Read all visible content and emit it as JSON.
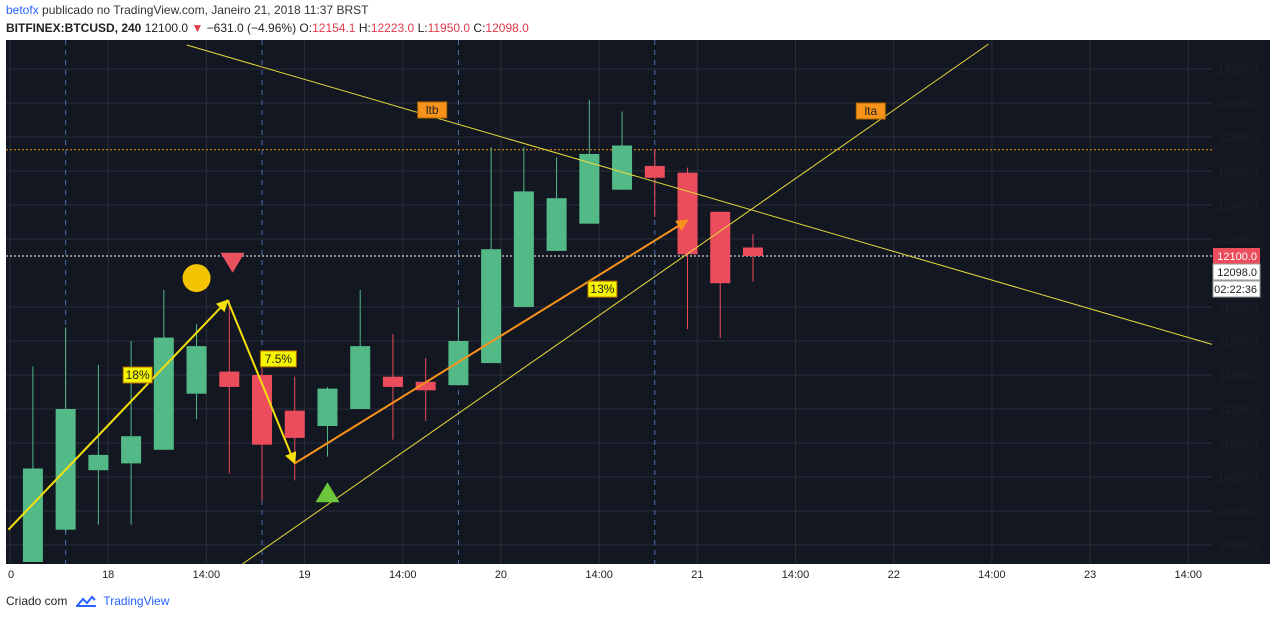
{
  "header": {
    "author": "betofx",
    "published_text": "publicado no TradingView.com, Janeiro 21, 2018 11:37 BRST",
    "symbol": "BITFINEX:BTCUSD, 240",
    "last": "12100.0",
    "change_arrow": "▼",
    "change": "−631.0 (−4.96%)",
    "o_label": "O:",
    "o_value": "12154.1",
    "h_label": "H:",
    "h_value": "12223.0",
    "l_label": "L:",
    "l_value": "11950.0",
    "c_label": "C:",
    "c_value": "12098.0"
  },
  "footer": {
    "created": "Criado com",
    "brand": "TradingView",
    "logo_icon": "tradingview-cloud-icon"
  },
  "chart_data": {
    "type": "candlestick",
    "y_ticks": [
      "13200.0",
      "13000.0",
      "12800.0",
      "12600.0",
      "12400.0",
      "12200.0",
      "11800.0",
      "11600.0",
      "11400.0",
      "11200.0",
      "11000.0",
      "10800.0",
      "10600.0",
      "10400.0"
    ],
    "ylim": [
      10300,
      13400
    ],
    "x_ticks": [
      {
        "x": 0,
        "label": "0"
      },
      {
        "x": 3,
        "label": "18"
      },
      {
        "x": 6,
        "label": "14:00"
      },
      {
        "x": 9,
        "label": "19"
      },
      {
        "x": 12,
        "label": "14:00"
      },
      {
        "x": 15,
        "label": "20"
      },
      {
        "x": 18,
        "label": "14:00"
      },
      {
        "x": 21,
        "label": "21"
      },
      {
        "x": 24,
        "label": "14:00"
      },
      {
        "x": 27,
        "label": "22"
      },
      {
        "x": 30,
        "label": "14:00"
      },
      {
        "x": 33,
        "label": "23"
      },
      {
        "x": 36,
        "label": "14:00"
      }
    ],
    "day_separators": [
      1.7,
      7.7,
      13.7,
      19.7
    ],
    "candles": [
      {
        "x": 0.7,
        "o": 10300,
        "h": 11450,
        "l": 10300,
        "c": 10850
      },
      {
        "x": 1.7,
        "o": 10490,
        "h": 11680,
        "l": 10480,
        "c": 11200
      },
      {
        "x": 2.7,
        "o": 10840,
        "h": 11460,
        "l": 10520,
        "c": 10930
      },
      {
        "x": 3.7,
        "o": 10880,
        "h": 11600,
        "l": 10520,
        "c": 11040
      },
      {
        "x": 4.7,
        "o": 10960,
        "h": 11900,
        "l": 10960,
        "c": 11620
      },
      {
        "x": 5.7,
        "o": 11290,
        "h": 11700,
        "l": 11140,
        "c": 11570
      },
      {
        "x": 6.7,
        "o": 11420,
        "h": 11840,
        "l": 10820,
        "c": 11330
      },
      {
        "x": 7.7,
        "o": 11400,
        "h": 11480,
        "l": 10660,
        "c": 10990
      },
      {
        "x": 8.7,
        "o": 11190,
        "h": 11390,
        "l": 10780,
        "c": 11030
      },
      {
        "x": 9.7,
        "o": 11100,
        "h": 11330,
        "l": 10920,
        "c": 11320
      },
      {
        "x": 10.7,
        "o": 11200,
        "h": 11900,
        "l": 11200,
        "c": 11570
      },
      {
        "x": 11.7,
        "o": 11390,
        "h": 11640,
        "l": 11020,
        "c": 11330
      },
      {
        "x": 12.7,
        "o": 11360,
        "h": 11500,
        "l": 11130,
        "c": 11310
      },
      {
        "x": 13.7,
        "o": 11340,
        "h": 11800,
        "l": 11340,
        "c": 11600
      },
      {
        "x": 14.7,
        "o": 11470,
        "h": 12740,
        "l": 11470,
        "c": 12140
      },
      {
        "x": 15.7,
        "o": 11800,
        "h": 12740,
        "l": 11800,
        "c": 12480
      },
      {
        "x": 16.7,
        "o": 12130,
        "h": 12680,
        "l": 12130,
        "c": 12440
      },
      {
        "x": 17.7,
        "o": 12290,
        "h": 13020,
        "l": 12290,
        "c": 12700
      },
      {
        "x": 18.7,
        "o": 12490,
        "h": 12950,
        "l": 12490,
        "c": 12750
      },
      {
        "x": 19.7,
        "o": 12630,
        "h": 12730,
        "l": 12330,
        "c": 12560
      },
      {
        "x": 20.7,
        "o": 12590,
        "h": 12620,
        "l": 11670,
        "c": 12110
      },
      {
        "x": 21.7,
        "o": 12360,
        "h": 12360,
        "l": 11620,
        "c": 11940
      },
      {
        "x": 22.7,
        "o": 12150,
        "h": 12230,
        "l": 11950,
        "c": 12100
      }
    ],
    "price_labels": {
      "last": "12100.0",
      "close": "12098.0",
      "countdown": "02:22:36"
    },
    "levels": {
      "orange_dotted": 12725,
      "white_dotted": 12100
    },
    "annotations": {
      "ltb_label": "ltb",
      "lta_label": "lta",
      "pct_18": "18%",
      "pct_75": "7.5%",
      "pct_13": "13%"
    },
    "colors": {
      "bg": "#131722",
      "up": "#53b987",
      "down": "#eb4d5c",
      "trendline": "#e6d93a",
      "swing": "#f5e00e",
      "orange_arrow": "#f7931a",
      "label_orange": "#f7931a",
      "label_yellow": "#f5f500",
      "grid": "#2a2e39"
    }
  }
}
